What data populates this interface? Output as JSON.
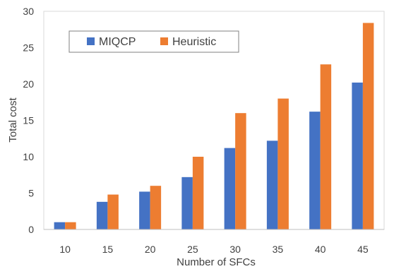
{
  "chart_data": {
    "type": "bar",
    "title": "",
    "xlabel": "Number of SFCs",
    "ylabel": "Total cost",
    "categories": [
      "10",
      "15",
      "20",
      "25",
      "30",
      "35",
      "40",
      "45"
    ],
    "ylim": [
      0,
      30
    ],
    "yticks": [
      0,
      5,
      10,
      15,
      20,
      25,
      30
    ],
    "grid": false,
    "legend_position": "top-left",
    "series": [
      {
        "name": "MIQCP",
        "color": "#4472C4",
        "values": [
          1.0,
          3.8,
          5.2,
          7.2,
          11.2,
          12.2,
          16.2,
          20.2
        ]
      },
      {
        "name": "Heuristic",
        "color": "#ED7D31",
        "values": [
          1.0,
          4.8,
          6.0,
          10.0,
          16.0,
          18.0,
          22.7,
          28.4
        ]
      }
    ]
  }
}
